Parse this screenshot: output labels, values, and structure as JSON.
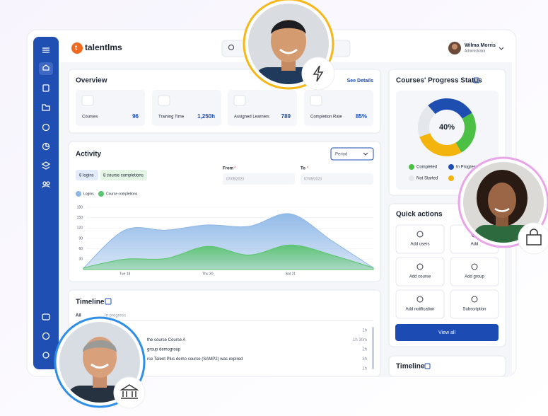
{
  "header": {
    "brand": "talentlms",
    "user_name": "Wilma Morris",
    "user_role": "Administrator"
  },
  "overview": {
    "title": "Overview",
    "link": "See Details",
    "stats": [
      {
        "label": "Courses",
        "value": "96"
      },
      {
        "label": "Training Time",
        "value": "1,250h"
      },
      {
        "label": "Assigned Learners",
        "value": "789"
      },
      {
        "label": "Completion Rate",
        "value": "85%"
      }
    ]
  },
  "activity": {
    "title": "Activity",
    "period": "Period",
    "badges": [
      "8 logins",
      "8 course completions"
    ],
    "from_label": "From",
    "to_label": "To",
    "required_mark": "*",
    "from_date": "07/05/2023",
    "to_date": "07/05/2023"
  },
  "chart_data": [
    {
      "type": "area",
      "categories": [
        null,
        "Tue 18",
        null,
        "Thu 20",
        null,
        "Sat 21",
        null,
        null
      ],
      "series": [
        {
          "name": "Logins",
          "color": "#8db6e6",
          "values": [
            4,
            114,
            114,
            129,
            125,
            161,
            83,
            5
          ]
        },
        {
          "name": "Course completions",
          "color": "#5cc46e",
          "values": [
            5,
            30,
            32,
            67,
            42,
            71,
            42,
            5
          ]
        }
      ],
      "ylim": [
        0,
        180
      ],
      "yticks": [
        30,
        60,
        90,
        120,
        150,
        180
      ],
      "grid": true
    },
    {
      "type": "donut",
      "title": "Courses' Progress Status",
      "center_label": "40%",
      "categories": [
        "Completed",
        "In Progress",
        "Not Started",
        null
      ],
      "values": [
        25,
        28,
        19,
        28
      ],
      "colors": [
        "#4cbf45",
        "#1e4fb0",
        "#e4e7ec",
        "#f4b40e"
      ]
    }
  ],
  "timeline": {
    "title": "Timeline",
    "tabs": [
      "All",
      "In progress"
    ],
    "items": [
      {
        "text": "",
        "time": "1h"
      },
      {
        "text": "the course Course A",
        "time": "1h 30m"
      },
      {
        "text": "group demogroup",
        "time": "2h"
      },
      {
        "text": "rse Talent Plus demo course (SAMP2) was expired",
        "time": "3h"
      },
      {
        "text": "",
        "time": "1h"
      }
    ]
  },
  "quick_actions": {
    "title": "Quick actions",
    "actions": [
      "Add users",
      "Add",
      "Add course",
      "Add group",
      "Add notification",
      "Subscription"
    ],
    "button": "View all"
  },
  "timeline2": {
    "title": "Timeline"
  }
}
